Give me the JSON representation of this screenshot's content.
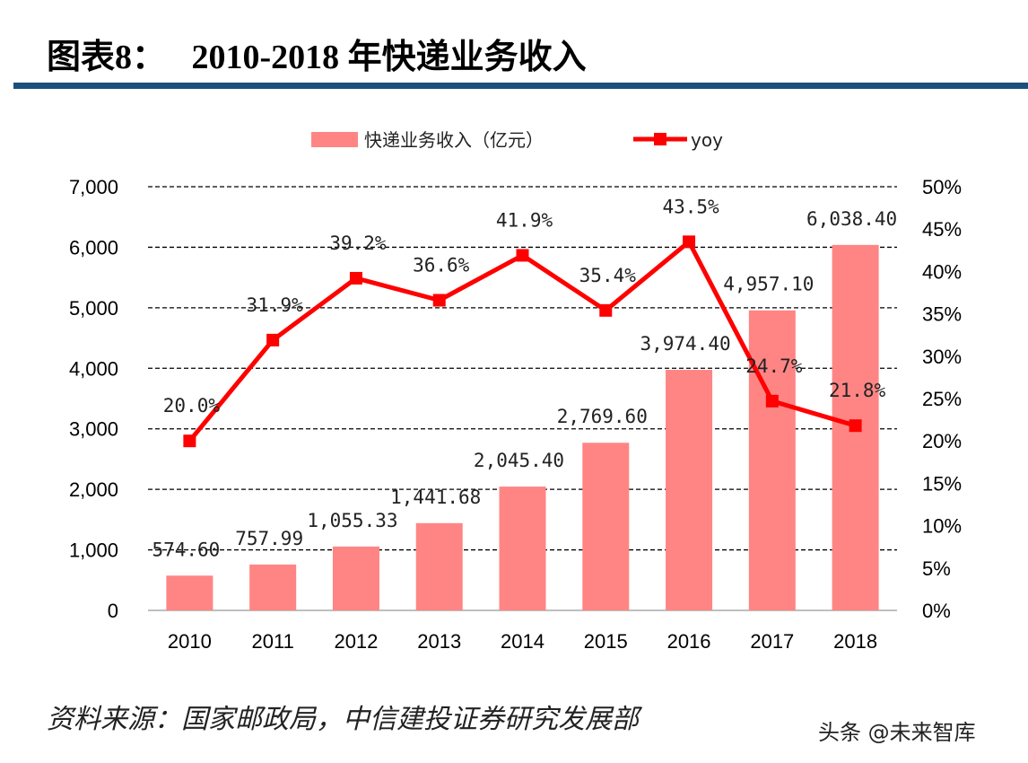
{
  "title": "图表8：   2010-2018 年快递业务收入",
  "source": "资料来源：国家邮政局，中信建投证券研究发展部",
  "watermark": "头条 @未来智库",
  "chart_data": {
    "type": "bar+line",
    "categories": [
      "2010",
      "2011",
      "2012",
      "2013",
      "2014",
      "2015",
      "2016",
      "2017",
      "2018"
    ],
    "series": [
      {
        "name": "快递业务收入（亿元）",
        "type": "bar",
        "axis": "left",
        "color": "#ff8585",
        "values": [
          574.6,
          757.99,
          1055.33,
          1441.68,
          2045.4,
          2769.6,
          3974.4,
          4957.1,
          6038.4
        ],
        "labels": [
          "574.60",
          "757.99",
          "1,055.33",
          "1,441.68",
          "2,045.40",
          "2,769.60",
          "3,974.40",
          "4,957.10",
          "6,038.40"
        ]
      },
      {
        "name": "yoy",
        "type": "line",
        "axis": "right",
        "color": "#ff0000",
        "values": [
          20.0,
          31.9,
          39.2,
          36.6,
          41.9,
          35.4,
          43.5,
          24.7,
          21.8
        ],
        "labels": [
          "20.0%",
          "31.9%",
          "39.2%",
          "36.6%",
          "41.9%",
          "35.4%",
          "43.5%",
          "24.7%",
          "21.8%"
        ]
      }
    ],
    "left_axis": {
      "ylim": [
        0,
        7000
      ],
      "ticks": [
        "0",
        "1,000",
        "2,000",
        "3,000",
        "4,000",
        "5,000",
        "6,000",
        "7,000"
      ]
    },
    "right_axis": {
      "ylim": [
        0,
        50
      ],
      "ticks": [
        "0%",
        "5%",
        "10%",
        "15%",
        "20%",
        "25%",
        "30%",
        "35%",
        "40%",
        "45%",
        "50%"
      ]
    },
    "grid": "dashed horizontal",
    "legend": {
      "placement": "top",
      "items": [
        "快递业务收入（亿元）",
        "yoy"
      ]
    }
  }
}
